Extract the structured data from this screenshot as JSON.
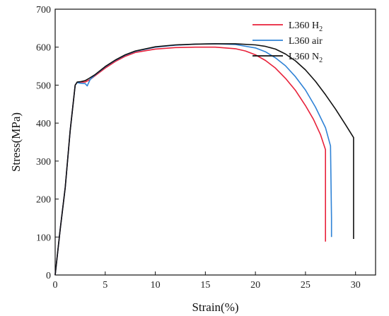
{
  "chart_data": {
    "type": "line",
    "title": "",
    "xlabel": "Strain(%)",
    "ylabel": "Stress(MPa)",
    "xlim": [
      0,
      32
    ],
    "ylim": [
      0,
      700
    ],
    "xticks": [
      0,
      5,
      10,
      15,
      20,
      25,
      30
    ],
    "yticks": [
      0,
      100,
      200,
      300,
      400,
      500,
      600,
      700
    ],
    "grid": false,
    "legend_position": "top-right",
    "series": [
      {
        "name": "L360 H",
        "name_sub": "2",
        "color": "#e8213a",
        "points": [
          [
            0,
            0
          ],
          [
            0.5,
            120
          ],
          [
            1.0,
            230
          ],
          [
            1.5,
            380
          ],
          [
            2.0,
            500
          ],
          [
            2.2,
            507
          ],
          [
            2.5,
            508
          ],
          [
            3.0,
            508
          ],
          [
            3.5,
            515
          ],
          [
            4,
            525
          ],
          [
            5,
            545
          ],
          [
            6,
            562
          ],
          [
            7,
            576
          ],
          [
            8,
            586
          ],
          [
            10,
            595
          ],
          [
            12,
            599
          ],
          [
            14,
            600
          ],
          [
            16,
            600
          ],
          [
            18,
            596
          ],
          [
            19,
            590
          ],
          [
            20,
            580
          ],
          [
            21,
            565
          ],
          [
            22,
            545
          ],
          [
            23,
            518
          ],
          [
            24,
            486
          ],
          [
            25,
            446
          ],
          [
            25.8,
            410
          ],
          [
            26.5,
            370
          ],
          [
            27,
            330
          ],
          [
            27.0,
            150
          ],
          [
            27.0,
            88
          ]
        ]
      },
      {
        "name": "L360 air",
        "name_sub": "",
        "color": "#2f82d6",
        "points": [
          [
            0,
            0
          ],
          [
            0.5,
            120
          ],
          [
            1.0,
            230
          ],
          [
            1.5,
            380
          ],
          [
            2.0,
            500
          ],
          [
            2.2,
            507
          ],
          [
            2.5,
            505
          ],
          [
            3.0,
            504
          ],
          [
            3.2,
            498
          ],
          [
            3.5,
            515
          ],
          [
            4,
            527
          ],
          [
            5,
            548
          ],
          [
            6,
            565
          ],
          [
            7,
            579
          ],
          [
            8,
            589
          ],
          [
            10,
            600
          ],
          [
            12,
            605
          ],
          [
            14,
            608
          ],
          [
            16,
            609
          ],
          [
            18,
            607
          ],
          [
            20,
            598
          ],
          [
            21,
            588
          ],
          [
            22,
            572
          ],
          [
            23,
            551
          ],
          [
            24,
            522
          ],
          [
            25,
            487
          ],
          [
            26,
            442
          ],
          [
            27,
            388
          ],
          [
            27.5,
            340
          ],
          [
            27.6,
            150
          ],
          [
            27.6,
            100
          ]
        ]
      },
      {
        "name": "L360 N",
        "name_sub": "2",
        "color": "#111111",
        "points": [
          [
            0,
            0
          ],
          [
            0.5,
            120
          ],
          [
            1.0,
            230
          ],
          [
            1.5,
            380
          ],
          [
            2.0,
            500
          ],
          [
            2.2,
            508
          ],
          [
            2.5,
            509
          ],
          [
            3.0,
            512
          ],
          [
            3.4,
            518
          ],
          [
            4,
            528
          ],
          [
            5,
            549
          ],
          [
            6,
            566
          ],
          [
            7,
            580
          ],
          [
            8,
            590
          ],
          [
            10,
            601
          ],
          [
            12,
            606
          ],
          [
            14,
            608
          ],
          [
            16,
            609
          ],
          [
            18,
            609
          ],
          [
            20,
            606
          ],
          [
            21,
            602
          ],
          [
            22,
            595
          ],
          [
            23,
            582
          ],
          [
            24,
            564
          ],
          [
            25,
            540
          ],
          [
            26,
            510
          ],
          [
            27,
            475
          ],
          [
            28,
            437
          ],
          [
            29,
            396
          ],
          [
            29.8,
            362
          ],
          [
            29.8,
            150
          ],
          [
            29.8,
            95
          ]
        ]
      }
    ]
  }
}
